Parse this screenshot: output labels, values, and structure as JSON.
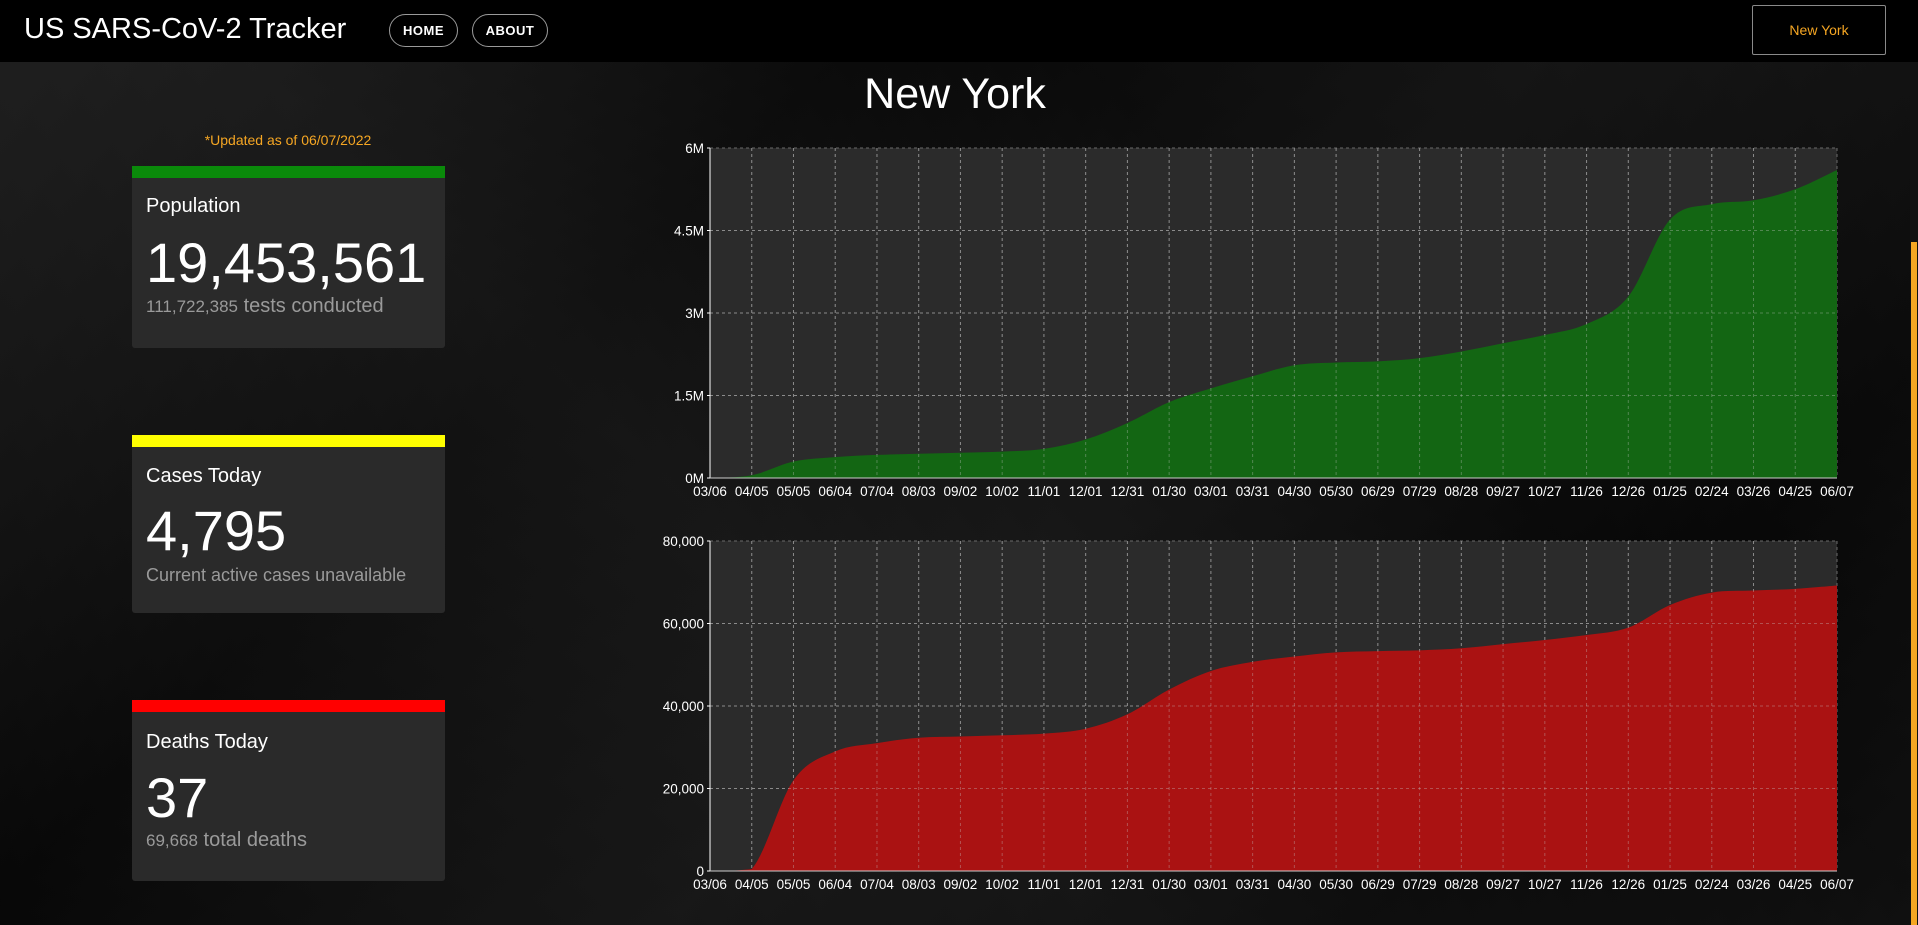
{
  "header": {
    "brand": "US SARS-CoV-2 Tracker",
    "nav": [
      {
        "label": "HOME"
      },
      {
        "label": "ABOUT"
      }
    ],
    "state_select": "New York"
  },
  "sidebar": {
    "updated": "*Updated as of 06/07/2022",
    "cards": [
      {
        "label": "Population",
        "value": "19,453,561",
        "sub_num": "111,722,385",
        "sub_text": " tests conducted",
        "color": "#0a8a0a"
      },
      {
        "label": "Cases Today",
        "value": "4,795",
        "sub_num": "",
        "sub_text": "Current active cases unavailable",
        "color": "#ffff00"
      },
      {
        "label": "Deaths Today",
        "value": "37",
        "sub_num": "69,668",
        "sub_text": " total deaths",
        "color": "#ff0000"
      }
    ]
  },
  "main": {
    "title": "New York"
  },
  "chart_data": [
    {
      "type": "area",
      "x": [
        "03/06",
        "04/05",
        "05/05",
        "06/04",
        "07/04",
        "08/03",
        "09/02",
        "10/02",
        "11/01",
        "12/01",
        "12/31",
        "01/30",
        "03/01",
        "03/31",
        "04/30",
        "05/30",
        "06/29",
        "07/29",
        "08/28",
        "09/27",
        "10/27",
        "11/26",
        "12/26",
        "01/25",
        "02/24",
        "03/26",
        "04/25",
        "06/07"
      ],
      "yticks": [
        "0M",
        "1.5M",
        "3M",
        "4.5M",
        "6M"
      ],
      "ylim": [
        0,
        6000000
      ],
      "color": "#136613",
      "series": [
        {
          "values": [
            0,
            50000,
            300000,
            380000,
            420000,
            440000,
            460000,
            480000,
            530000,
            700000,
            1000000,
            1380000,
            1630000,
            1850000,
            2050000,
            2100000,
            2120000,
            2180000,
            2300000,
            2450000,
            2600000,
            2800000,
            3300000,
            4700000,
            4980000,
            5050000,
            5250000,
            5600000
          ]
        }
      ]
    },
    {
      "type": "area",
      "x": [
        "03/06",
        "04/05",
        "05/05",
        "06/04",
        "07/04",
        "08/03",
        "09/02",
        "10/02",
        "11/01",
        "12/01",
        "12/31",
        "01/30",
        "03/01",
        "03/31",
        "04/30",
        "05/30",
        "06/29",
        "07/29",
        "08/28",
        "09/27",
        "10/27",
        "11/26",
        "12/26",
        "01/25",
        "02/24",
        "03/26",
        "04/25",
        "06/07"
      ],
      "yticks": [
        "0",
        "20,000",
        "40,000",
        "60,000",
        "80,000"
      ],
      "ylim": [
        0,
        80000
      ],
      "color": "#aa1212",
      "series": [
        {
          "values": [
            0,
            500,
            22000,
            29000,
            31000,
            32300,
            32600,
            32900,
            33300,
            34500,
            38000,
            44000,
            48500,
            50700,
            52000,
            53000,
            53300,
            53500,
            54000,
            55000,
            56000,
            57200,
            59000,
            64500,
            67500,
            68000,
            68400,
            69200
          ]
        }
      ]
    }
  ]
}
